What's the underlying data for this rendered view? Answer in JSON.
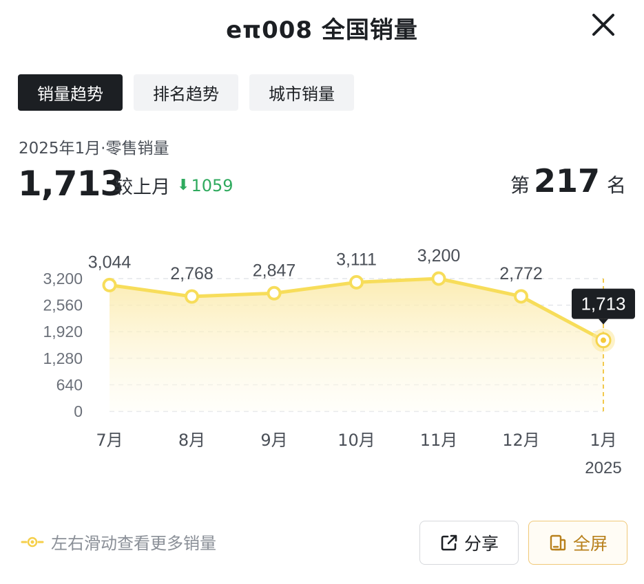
{
  "header": {
    "title": "eπ008 全国销量",
    "close_icon": "close-icon"
  },
  "tabs": [
    {
      "label": "销量趋势",
      "active": true
    },
    {
      "label": "排名趋势",
      "active": false
    },
    {
      "label": "城市销量",
      "active": false
    }
  ],
  "summary": {
    "period": "2025年1月·零售销量",
    "value": "1,713",
    "compare_label": "较上月",
    "delta_arrow": "⬇",
    "delta": "1059",
    "rank_prefix": "第",
    "rank": "217",
    "rank_suffix": "名"
  },
  "colors": {
    "line": "#f7dd5a",
    "area_top": "#fbe9a6",
    "tooltip_bg": "#1c1f23",
    "down": "#2faa5e",
    "accent_button": "#b8801c"
  },
  "chart_data": {
    "type": "area",
    "categories": [
      "7月",
      "8月",
      "9月",
      "10月",
      "11月",
      "12月",
      "1月"
    ],
    "year_label": "2025",
    "values": [
      3044,
      2768,
      2847,
      3111,
      3200,
      2772,
      1713
    ],
    "value_labels": [
      "3,044",
      "2,768",
      "2,847",
      "3,111",
      "3,200",
      "2,772",
      "1,713"
    ],
    "yticks": [
      0,
      640,
      1280,
      1920,
      2560,
      3200
    ],
    "ytick_labels": [
      "0",
      "640",
      "1,280",
      "1,920",
      "2,560",
      "3,200"
    ],
    "ylim": [
      0,
      3200
    ],
    "grid": true,
    "highlight_index": 6
  },
  "footer": {
    "hint": "左右滑动查看更多销量",
    "hint_icon": "swipe-indicator-icon",
    "share_label": "分享",
    "share_icon": "share-icon",
    "fullscreen_label": "全屏",
    "fullscreen_icon": "fullscreen-icon"
  }
}
